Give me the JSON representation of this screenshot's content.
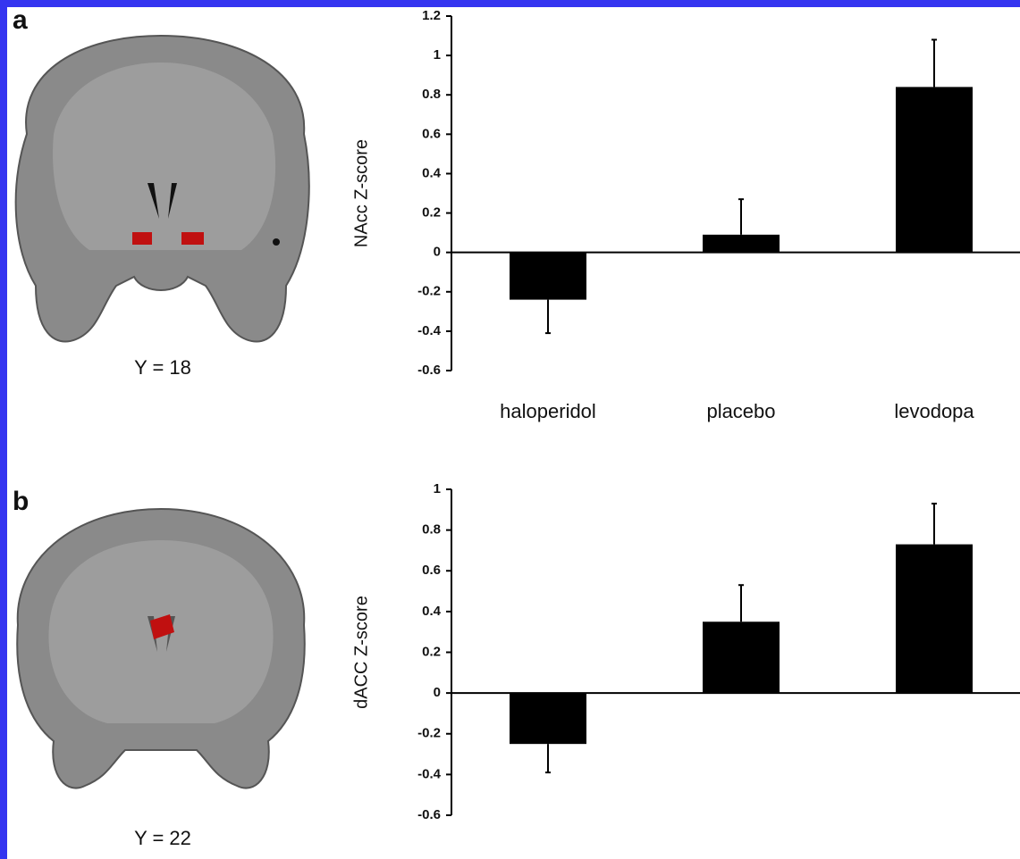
{
  "chart_data": [
    {
      "type": "bar",
      "panel": "a",
      "caption": "Y = 18",
      "y_label": "NAcc Z-score",
      "categories": [
        "haloperidol",
        "placebo",
        "levodopa"
      ],
      "values": [
        -0.24,
        0.09,
        0.84
      ],
      "errors": [
        0.17,
        0.18,
        0.24
      ],
      "color": "#000000",
      "ylim": [
        -0.6,
        1.2
      ],
      "yticks": [
        -0.6,
        -0.4,
        -0.2,
        0,
        0.2,
        0.4,
        0.6,
        0.8,
        1,
        1.2
      ]
    },
    {
      "type": "bar",
      "panel": "b",
      "caption": "Y = 22",
      "y_label": "dACC Z-score",
      "categories": [
        null,
        null,
        null
      ],
      "values": [
        -0.25,
        0.35,
        0.73
      ],
      "errors": [
        0.14,
        0.18,
        0.2
      ],
      "color": "#000000",
      "ylim": [
        -0.6,
        1
      ],
      "yticks": [
        -0.6,
        -0.4,
        -0.2,
        0,
        0.2,
        0.4,
        0.6,
        0.8,
        1
      ]
    }
  ]
}
